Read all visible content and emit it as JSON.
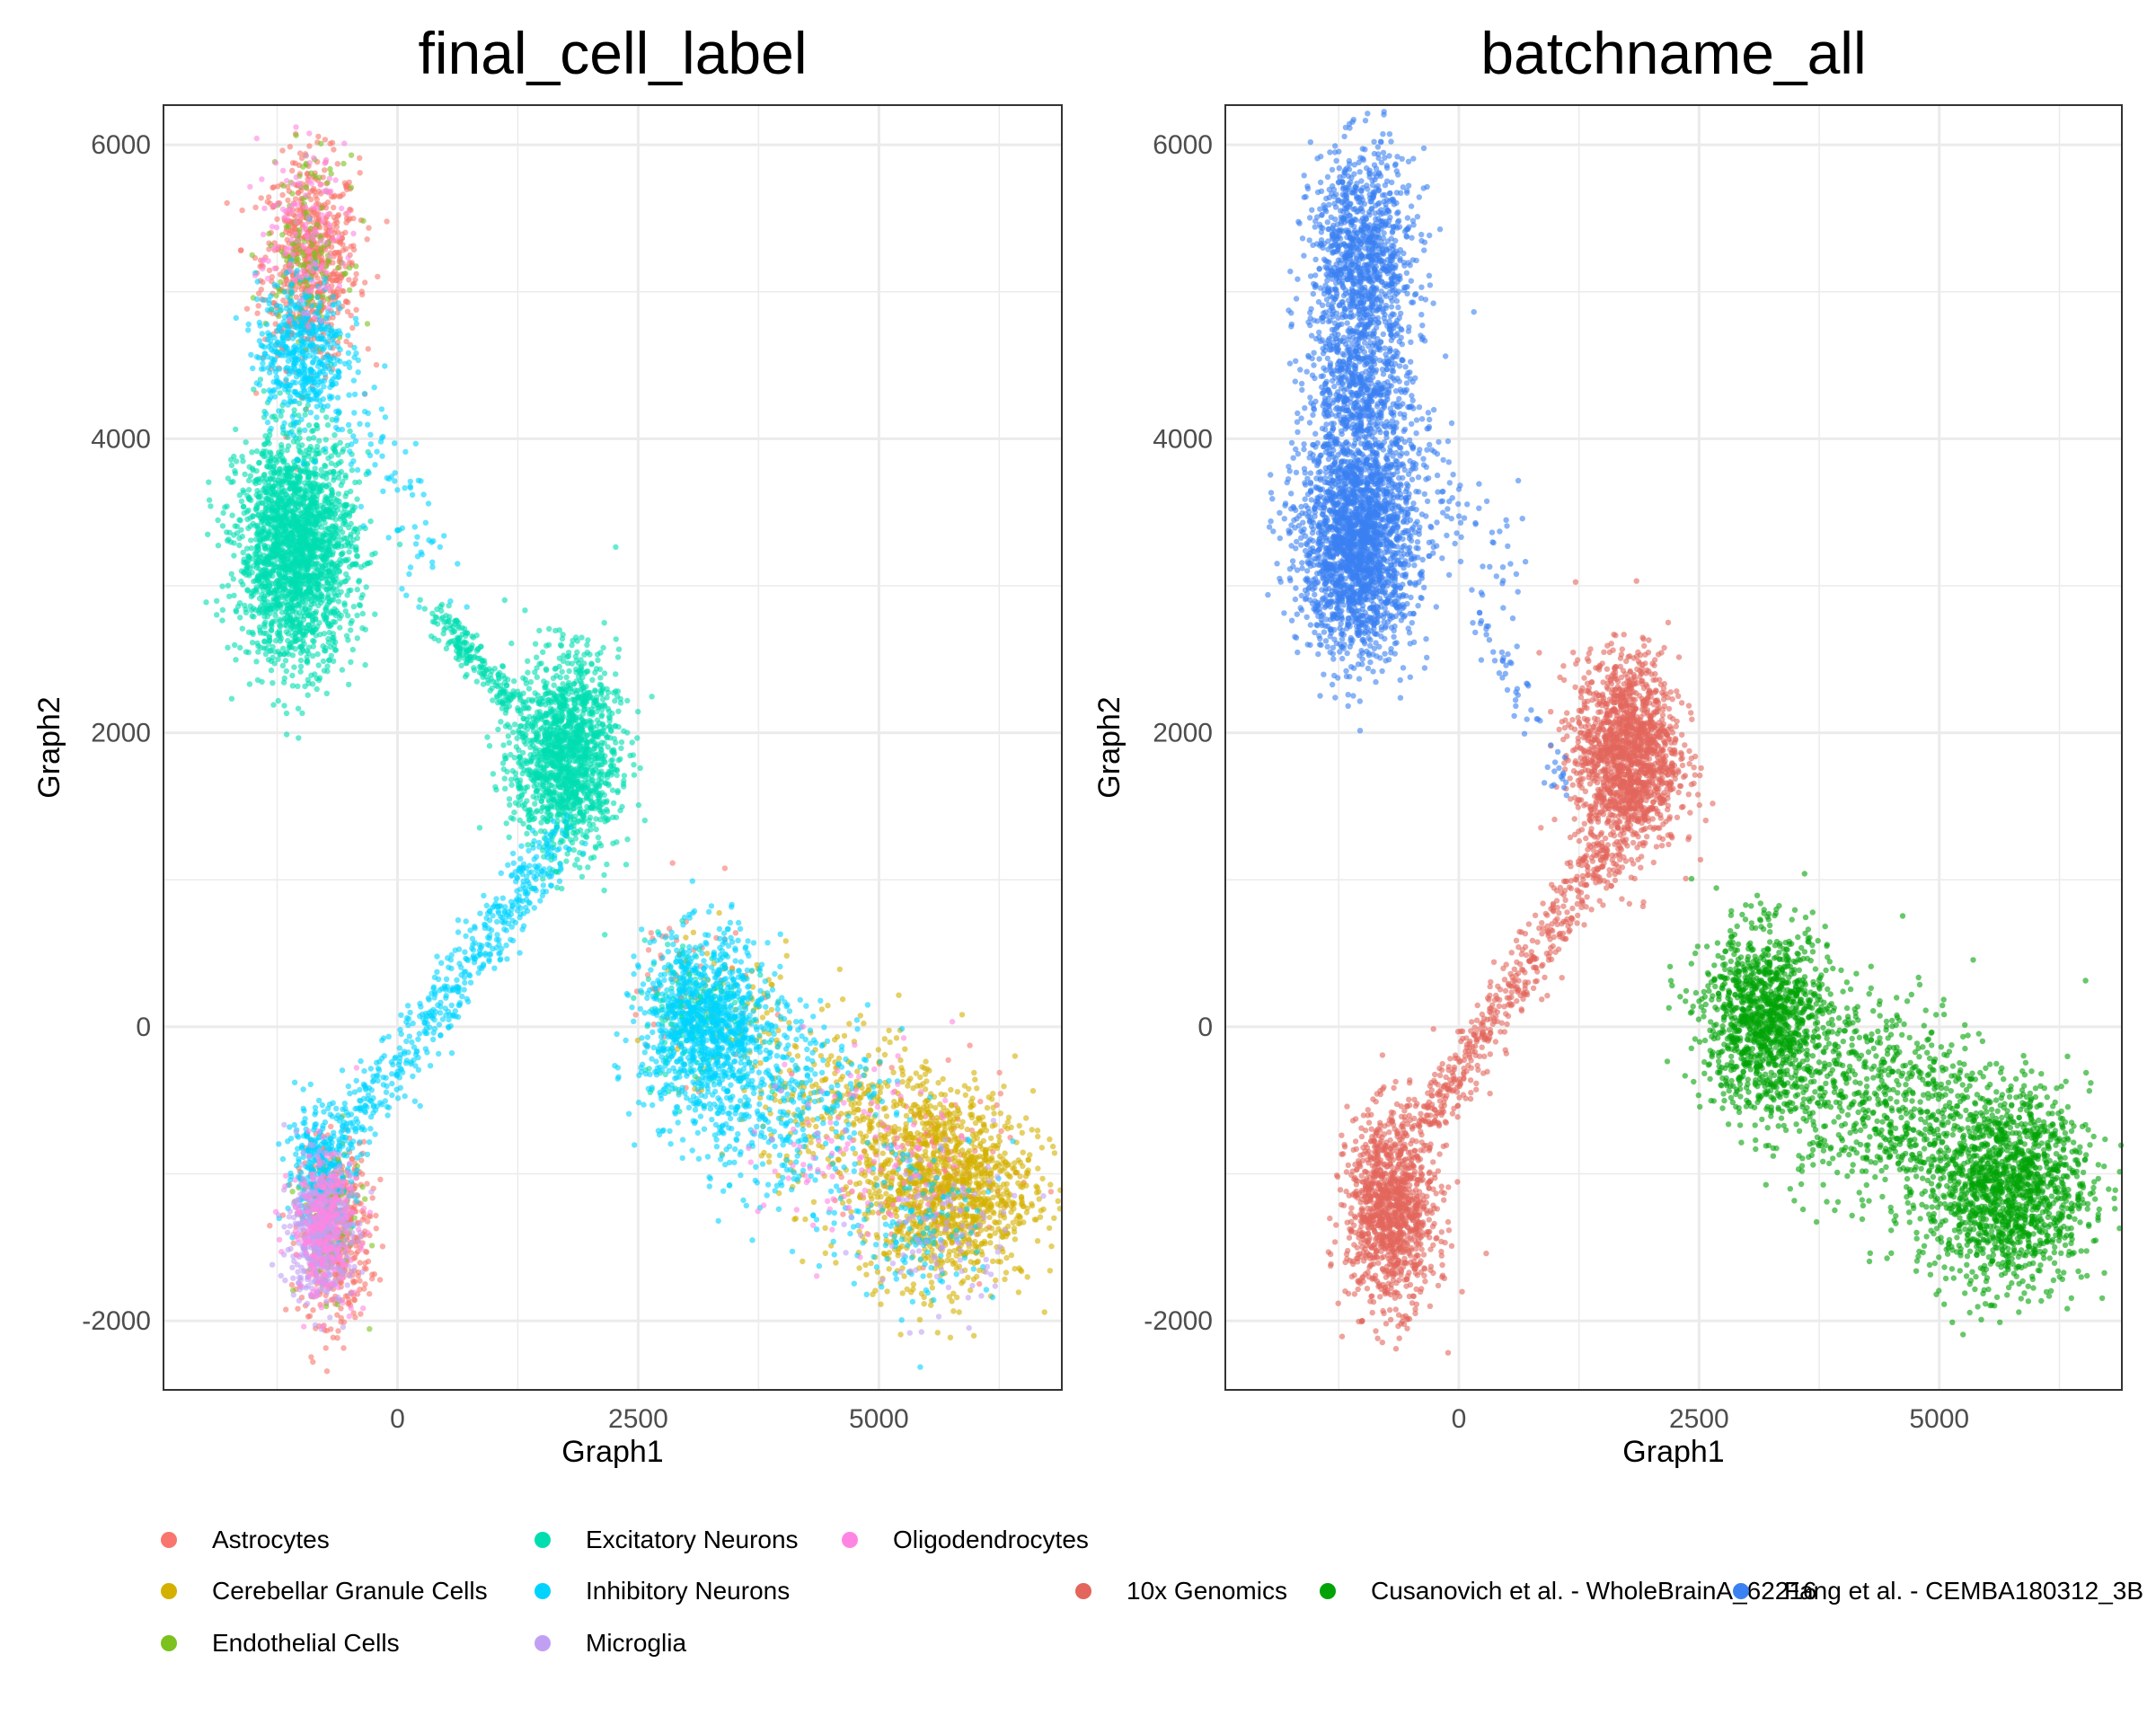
{
  "chart_data": [
    {
      "type": "scatter",
      "title": "final_cell_label",
      "xlabel": "Graph1",
      "ylabel": "Graph2",
      "xlim": [
        -2430,
        6900
      ],
      "ylim": [
        -2470,
        6270
      ],
      "xticks": [
        0,
        2500,
        5000
      ],
      "yticks": [
        -2000,
        0,
        2000,
        4000,
        6000
      ],
      "grid": true,
      "legend_position": "bottom",
      "series": [
        {
          "name": "Astrocytes",
          "color": "#F8766D",
          "clusters": [
            [
              -900,
              5200,
              250,
              350,
              700
            ],
            [
              -650,
              -1400,
              180,
              300,
              500
            ],
            [
              3000,
              300,
              350,
              300,
              60
            ],
            [
              5600,
              -1000,
              400,
              300,
              120
            ]
          ]
        },
        {
          "name": "Cerebellar Granule Cells",
          "color": "#D4B000",
          "clusters": [
            [
              5700,
              -1100,
              450,
              330,
              1200
            ],
            [
              4800,
              -600,
              500,
              300,
              300
            ],
            [
              3500,
              0,
              400,
              300,
              100
            ]
          ]
        },
        {
          "name": "Endothelial Cells",
          "color": "#7CC11E",
          "clusters": [
            [
              -950,
              5300,
              200,
              300,
              150
            ],
            [
              -700,
              -1300,
              160,
              250,
              120
            ]
          ]
        },
        {
          "name": "Excitatory Neurons",
          "color": "#00DEB0",
          "clusters": [
            [
              -1050,
              3250,
              300,
              380,
              2200
            ],
            [
              1750,
              1850,
              270,
              330,
              1500
            ],
            [
              3100,
              100,
              280,
              250,
              200
            ]
          ],
          "streaks": [
            [
              [
                400,
                2800
              ],
              [
                1200,
                2200
              ],
              60,
              200
            ]
          ]
        },
        {
          "name": "Inhibitory Neurons",
          "color": "#00D3FF",
          "clusters": [
            [
              -1000,
              4600,
              230,
              250,
              500
            ],
            [
              3200,
              0,
              330,
              300,
              1000
            ],
            [
              4000,
              -500,
              500,
              350,
              400
            ],
            [
              -800,
              -950,
              180,
              200,
              300
            ],
            [
              5400,
              -1300,
              400,
              300,
              150
            ]
          ],
          "streaks": [
            [
              [
                -500,
                -700
              ],
              [
                1700,
                1300
              ],
              110,
              500
            ],
            [
              [
                -600,
                4300
              ],
              [
                500,
                3000
              ],
              180,
              80
            ]
          ]
        },
        {
          "name": "Microglia",
          "color": "#C1A0F4",
          "clusters": [
            [
              -800,
              -1400,
              160,
              230,
              500
            ],
            [
              5600,
              -1400,
              400,
              280,
              100
            ]
          ]
        },
        {
          "name": "Oligodendrocytes",
          "color": "#FF85E2",
          "clusters": [
            [
              -750,
              -1350,
              170,
              250,
              250
            ],
            [
              -1000,
              5400,
              220,
              280,
              120
            ],
            [
              4800,
              -800,
              500,
              350,
              120
            ]
          ]
        }
      ]
    },
    {
      "type": "scatter",
      "title": "batchname_all",
      "xlabel": "Graph1",
      "ylabel": "Graph2",
      "xlim": [
        -2430,
        6900
      ],
      "ylim": [
        -2470,
        6270
      ],
      "xticks": [
        0,
        2500,
        5000
      ],
      "yticks": [
        -2000,
        0,
        2000,
        4000,
        6000
      ],
      "grid": true,
      "legend_position": "bottom",
      "series": [
        {
          "name": "10x Genomics",
          "color": "#E3655B",
          "clusters": [
            [
              1750,
              1850,
              270,
              330,
              1600
            ],
            [
              -700,
              -1250,
              230,
              320,
              1200
            ]
          ],
          "streaks": [
            [
              [
                -400,
                -700
              ],
              [
                1600,
                1300
              ],
              100,
              500
            ]
          ]
        },
        {
          "name": "Cusanovich et al. - WholeBrainA_62216",
          "color": "#02A307",
          "clusters": [
            [
              3200,
              50,
              330,
              300,
              1200
            ],
            [
              5700,
              -1100,
              430,
              330,
              1500
            ],
            [
              4400,
              -500,
              600,
              350,
              700
            ]
          ]
        },
        {
          "name": "Fang et al. - CEMBA180312_3B",
          "color": "#3A81F2",
          "clusters": [
            [
              -1000,
              5200,
              270,
              370,
              1100
            ],
            [
              -1050,
              4300,
              270,
              300,
              600
            ],
            [
              -1050,
              3300,
              300,
              380,
              2200
            ]
          ],
          "streaks": [
            [
              [
                -600,
                4200
              ],
              [
                500,
                3000
              ],
              180,
              100
            ],
            [
              [
                200,
                2800
              ],
              [
                1100,
                1600
              ],
              70,
              60
            ]
          ]
        }
      ]
    }
  ]
}
